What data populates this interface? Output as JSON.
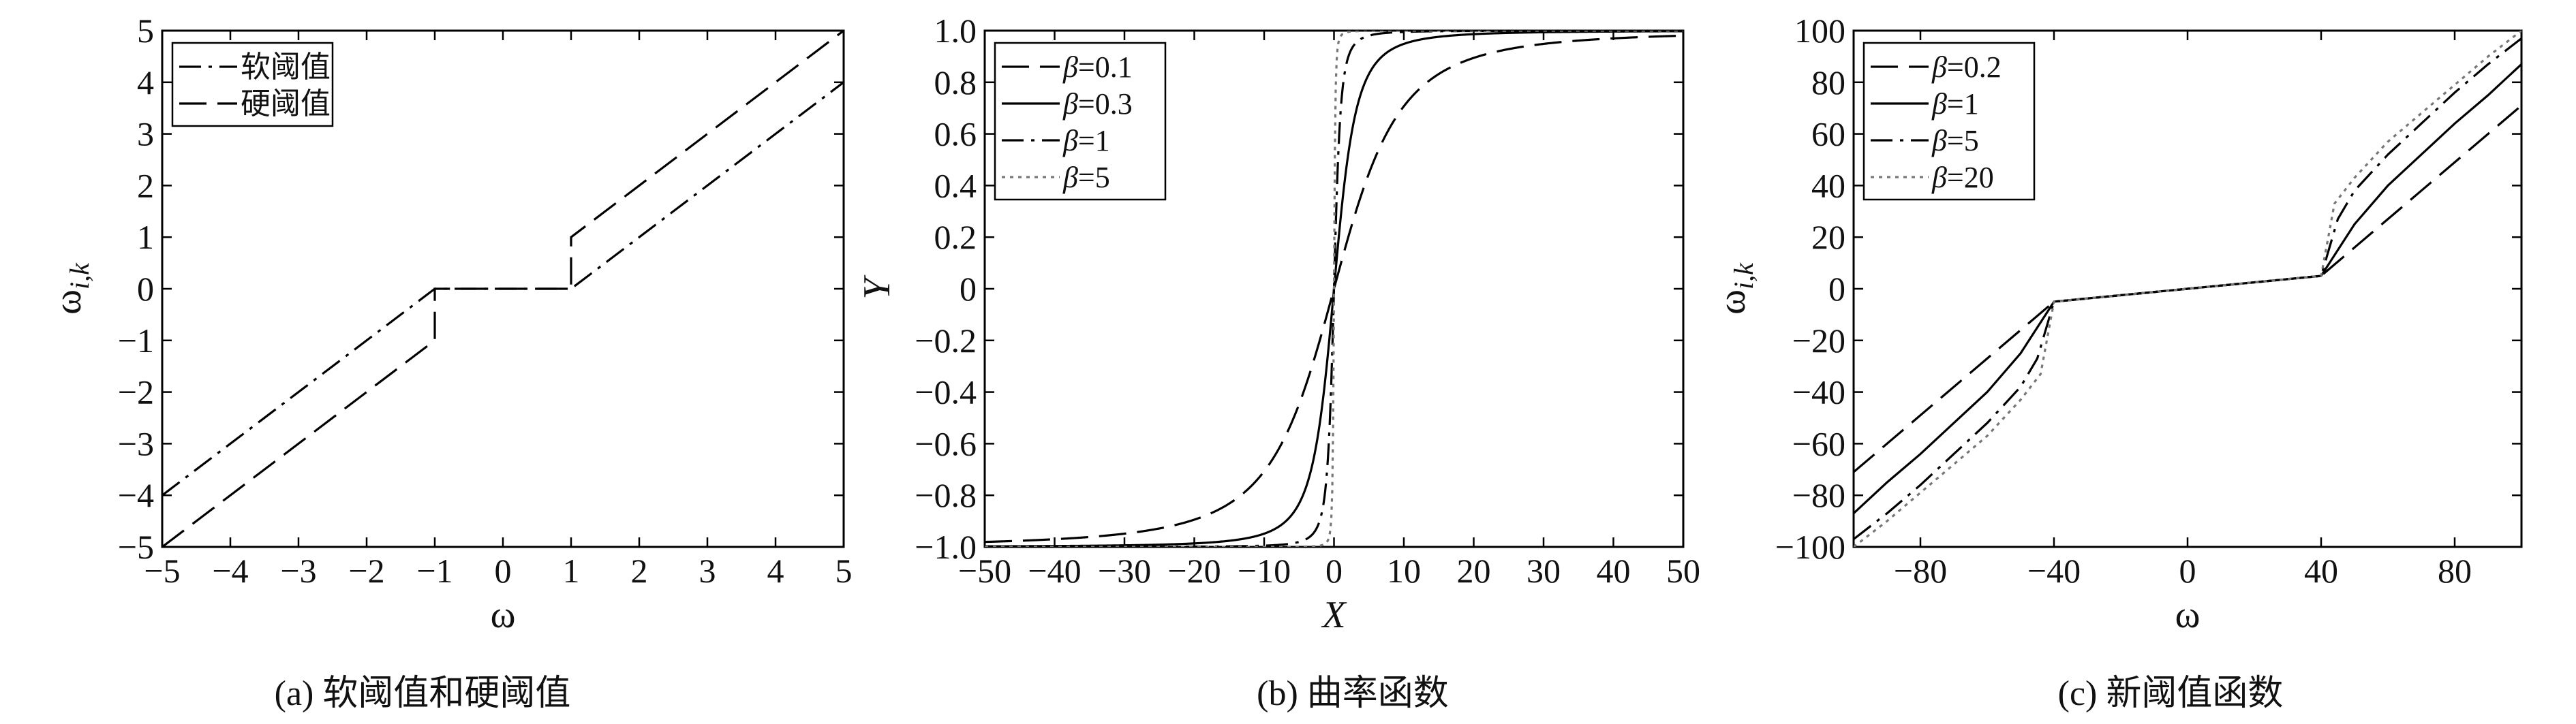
{
  "chart_data": [
    {
      "type": "line",
      "caption": "(a) 软阈值和硬阈值",
      "xlabel": "ω",
      "ylabel": "ωi,k",
      "xlim": [
        -5,
        5
      ],
      "ylim": [
        -5,
        5
      ],
      "xticks": [
        -5,
        -4,
        -3,
        -2,
        -1,
        0,
        1,
        2,
        3,
        4,
        5
      ],
      "yticks": [
        -5,
        -4,
        -3,
        -2,
        -1,
        0,
        1,
        2,
        3,
        4,
        5
      ],
      "legend_position": "top-left",
      "series": [
        {
          "name": "软阈值",
          "style": "dash-dot",
          "color": "#000000",
          "threshold": 1,
          "x": [
            -5,
            -1,
            1,
            5
          ],
          "y": [
            -4,
            0,
            0,
            4
          ]
        },
        {
          "name": "硬阈值",
          "style": "dash",
          "color": "#000000",
          "threshold": 1,
          "x": [
            -5,
            -1,
            -1,
            1,
            1,
            5
          ],
          "y": [
            -5,
            -1,
            0,
            0,
            1,
            5
          ]
        }
      ]
    },
    {
      "type": "line",
      "caption": "(b) 曲率函数",
      "xlabel": "X",
      "ylabel": "Y",
      "xlim": [
        -50,
        50
      ],
      "ylim": [
        -1.0,
        1.0
      ],
      "xticks": [
        -50,
        -40,
        -30,
        -20,
        -10,
        0,
        10,
        20,
        30,
        40,
        50
      ],
      "yticks": [
        -1.0,
        -0.8,
        -0.6,
        -0.4,
        -0.2,
        0,
        0.2,
        0.4,
        0.6,
        0.8,
        1.0
      ],
      "ytick_labels": [
        "−1.0",
        "−0.8",
        "−0.6",
        "−0.4",
        "−0.2",
        "0",
        "0.2",
        "0.4",
        "0.6",
        "0.8",
        "1.0"
      ],
      "legend_position": "top-left",
      "series": [
        {
          "name": "β=0.1",
          "beta": 0.1,
          "style": "dash",
          "color": "#000000"
        },
        {
          "name": "β=0.3",
          "beta": 0.3,
          "style": "solid",
          "color": "#000000"
        },
        {
          "name": "β=1",
          "beta": 1,
          "style": "dash-dot",
          "color": "#000000"
        },
        {
          "name": "β=5",
          "beta": 5,
          "style": "dot",
          "color": "#777777"
        }
      ]
    },
    {
      "type": "line",
      "caption": "(c) 新阈值函数",
      "xlabel": "ω",
      "ylabel": "ωi,k",
      "xlim": [
        -100,
        100
      ],
      "ylim": [
        -100,
        100
      ],
      "xticks": [
        -80,
        -40,
        0,
        40,
        80
      ],
      "yticks": [
        -100,
        -80,
        -60,
        -40,
        -20,
        0,
        20,
        40,
        60,
        80,
        100
      ],
      "legend_position": "top-left",
      "series": [
        {
          "name": "β=0.2",
          "style": "dash",
          "color": "#000000",
          "threshold": 40,
          "x": [
            -100,
            -40,
            40,
            100
          ],
          "y": [
            -71,
            -5,
            5,
            71
          ]
        },
        {
          "name": "β=1",
          "style": "solid",
          "color": "#000000",
          "threshold": 40,
          "x": [
            -100,
            -90,
            -80,
            -70,
            -60,
            -50,
            -40,
            40,
            50,
            60,
            70,
            80,
            90,
            100
          ],
          "y": [
            -87,
            -75,
            -64,
            -52,
            -40,
            -25,
            -5,
            5,
            25,
            40,
            52,
            64,
            75,
            87
          ]
        },
        {
          "name": "β=5",
          "style": "dash-dot",
          "color": "#000000",
          "threshold": 40,
          "x": [
            -100,
            -90,
            -80,
            -70,
            -60,
            -50,
            -45,
            -40,
            40,
            45,
            50,
            60,
            70,
            80,
            90,
            100
          ],
          "y": [
            -97,
            -87,
            -76,
            -64,
            -52,
            -38,
            -27,
            -5,
            5,
            27,
            38,
            52,
            64,
            76,
            87,
            97
          ]
        },
        {
          "name": "β=20",
          "style": "dot",
          "color": "#777777",
          "threshold": 40,
          "x": [
            -100,
            -90,
            -80,
            -70,
            -60,
            -50,
            -44,
            -40,
            40,
            44,
            50,
            60,
            70,
            80,
            90,
            100
          ],
          "y": [
            -100,
            -90,
            -79,
            -68,
            -57,
            -43,
            -33,
            -5,
            5,
            33,
            43,
            57,
            68,
            79,
            90,
            100
          ]
        }
      ]
    }
  ]
}
